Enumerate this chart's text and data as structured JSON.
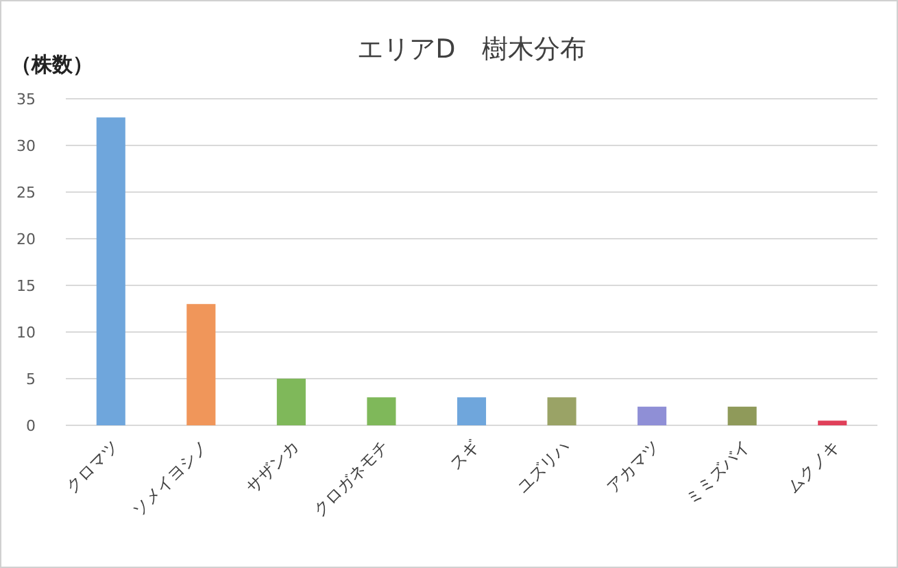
{
  "chart_data": {
    "type": "bar",
    "title": "エリアD　樹木分布",
    "ylabel": "（株数）",
    "categories": [
      "クロマツ",
      "ソメイヨシノ",
      "サザンカ",
      "クロガネモチ",
      "スギ",
      "ユズリハ",
      "アカマツ",
      "ミミズバイ",
      "ムクノキ"
    ],
    "values": [
      33,
      13,
      5,
      3,
      3,
      3,
      2,
      2,
      0.5
    ],
    "colors": [
      "#6fa6dc",
      "#f0965a",
      "#7fb85a",
      "#7fb85a",
      "#6fa6dc",
      "#9aa366",
      "#8f8fd6",
      "#8f9a5a",
      "#e0405a"
    ],
    "ylim": [
      0,
      35
    ],
    "yticks": [
      0,
      5,
      10,
      15,
      20,
      25,
      30,
      35
    ],
    "grid": "y"
  }
}
